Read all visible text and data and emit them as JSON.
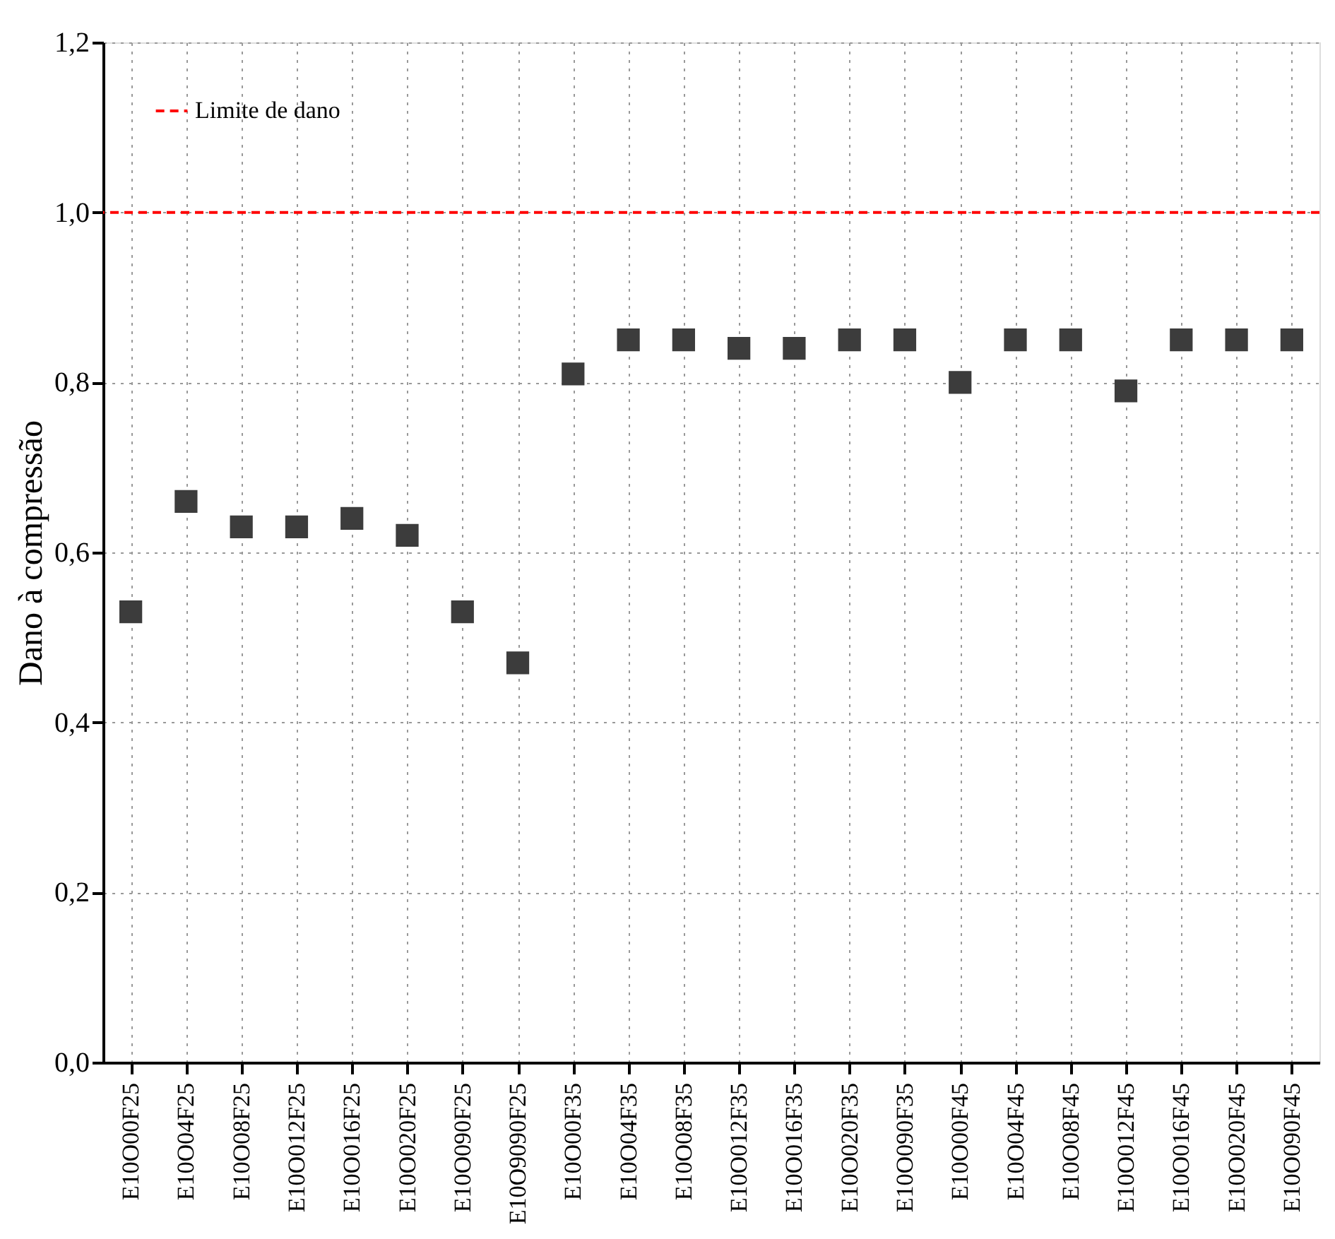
{
  "chart_data": {
    "type": "scatter",
    "ylabel": "Dano à compressão",
    "categories": [
      "E10O00F25",
      "E10O04F25",
      "E10O08F25",
      "E10O012F25",
      "E10O016F25",
      "E10O020F25",
      "E10O090F25",
      "E10O9090F25",
      "E10O00F35",
      "E10O04F35",
      "E10O08F35",
      "E10O012F35",
      "E10O016F35",
      "E10O020F35",
      "E10O090F35",
      "E10O00F45",
      "E10O04F45",
      "E10O08F45",
      "E10O012F45",
      "E10O016F45",
      "E10O020F45",
      "E10O090F45"
    ],
    "series": [
      {
        "color": "#3c3c3c",
        "values": [
          0.53,
          0.66,
          0.63,
          0.63,
          0.64,
          0.62,
          0.53,
          0.47,
          0.81,
          0.85,
          0.85,
          0.84,
          0.84,
          0.85,
          0.85,
          0.8,
          0.85,
          0.85,
          0.79,
          0.85,
          0.85,
          0.85
        ]
      }
    ],
    "marker": "square",
    "ylim": [
      0,
      1.2
    ],
    "yticks": [
      {
        "value": 0,
        "label": "0,0"
      },
      {
        "value": 0.2,
        "label": "0,2"
      },
      {
        "value": 0.4,
        "label": "0,4"
      },
      {
        "value": 0.6,
        "label": "0,6"
      },
      {
        "value": 0.8,
        "label": "0,8"
      },
      {
        "value": 1.0,
        "label": "1,0"
      },
      {
        "value": 1.2,
        "label": "1,2"
      }
    ],
    "ref_lines": [
      {
        "axis": "y",
        "value": 1.0,
        "label": "Limite de dano",
        "color": "#ff0000",
        "line_style": "dashed"
      }
    ],
    "grid": true,
    "legend": "top left"
  }
}
